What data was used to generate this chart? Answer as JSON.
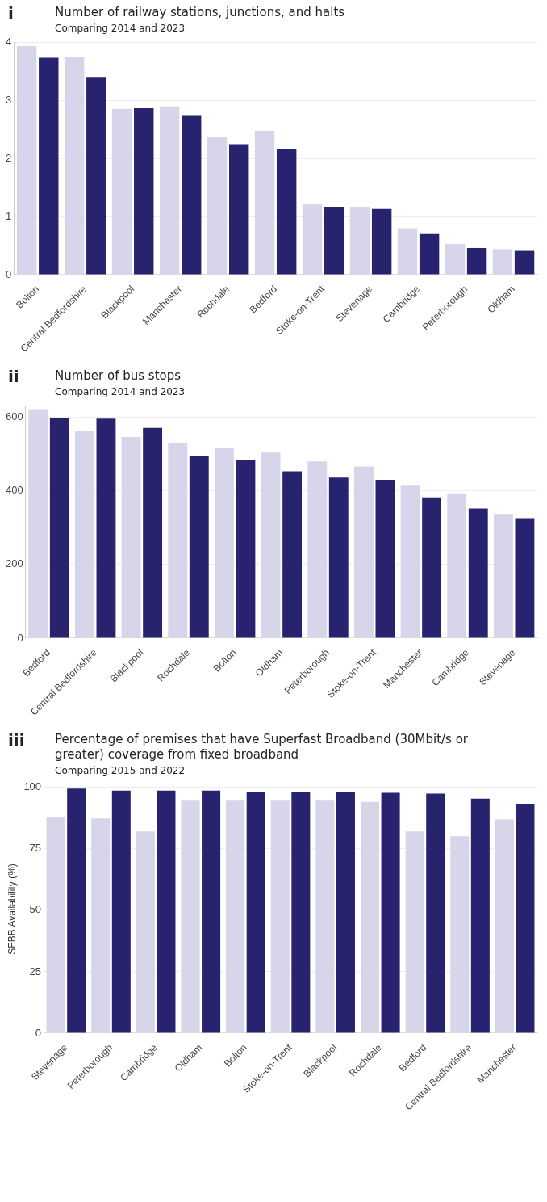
{
  "chart_data": [
    {
      "type": "bar",
      "title": "Number of railway stations, junctions, and halts",
      "subtitle": "Comparing 2014 and 2023",
      "annotations": [
        "i"
      ],
      "categories": [
        "Bolton",
        "Central Bedfordshire",
        "Blackpool",
        "Manchester",
        "Rochdale",
        "Bedford",
        "Stoke-on-Trent",
        "Stevenage",
        "Cambridge",
        "Peterborough",
        "Oldham"
      ],
      "series": [
        {
          "color": "#d6d5ea",
          "values": [
            3.94,
            3.75,
            2.86,
            2.9,
            2.37,
            2.48,
            1.21,
            1.17,
            0.8,
            0.53,
            0.44
          ]
        },
        {
          "color": "#27236e",
          "values": [
            3.74,
            3.41,
            2.87,
            2.75,
            2.25,
            2.17,
            1.17,
            1.13,
            0.7,
            0.46,
            0.41
          ]
        }
      ],
      "ylim": [
        0,
        4
      ],
      "yticks": [
        0,
        1,
        2,
        3,
        4
      ],
      "grid": "y"
    },
    {
      "type": "bar",
      "title": "Number of bus stops",
      "subtitle": "Comparing 2014 and 2023",
      "annotations": [
        "ii"
      ],
      "categories": [
        "Bedford",
        "Central Bedfordshire",
        "Blackpool",
        "Rochdale",
        "Bolton",
        "Oldham",
        "Peterborough",
        "Stoke-on-Trent",
        "Manchester",
        "Cambridge",
        "Stevenage"
      ],
      "series": [
        {
          "color": "#d6d5ea",
          "values": [
            622,
            562,
            546,
            531,
            517,
            504,
            480,
            466,
            414,
            393,
            337
          ]
        },
        {
          "color": "#27236e",
          "values": [
            597,
            596,
            571,
            494,
            485,
            453,
            436,
            430,
            382,
            352,
            326
          ]
        }
      ],
      "ylim": [
        0,
        630
      ],
      "yticks": [
        0,
        200,
        400,
        600
      ],
      "grid": "y"
    },
    {
      "type": "bar",
      "title": "Percentage of premises that have Superfast Broadband (30Mbit/s or greater) coverage from fixed broadband",
      "subtitle": "Comparing 2015 and 2022",
      "annotations": [
        "iii"
      ],
      "ylabel": "SFBB Availability (%)",
      "categories": [
        "Stevenage",
        "Peterborough",
        "Cambridge",
        "Oldham",
        "Bolton",
        "Stoke-on-Trent",
        "Blackpool",
        "Rochdale",
        "Bedford",
        "Central Bedfordshire",
        "Manchester"
      ],
      "series": [
        {
          "color": "#d6d5ea",
          "values": [
            88,
            87.4,
            82.1,
            94.9,
            94.9,
            94.9,
            94.9,
            94.1,
            82.1,
            80.1,
            87
          ]
        },
        {
          "color": "#27236e",
          "values": [
            99.5,
            98.7,
            98.7,
            98.7,
            98.3,
            98.3,
            98.1,
            97.8,
            97.5,
            95.4,
            93.4
          ]
        }
      ],
      "ylim": [
        0,
        101
      ],
      "yticks": [
        0,
        25,
        50,
        75,
        100
      ],
      "grid": "y"
    }
  ]
}
